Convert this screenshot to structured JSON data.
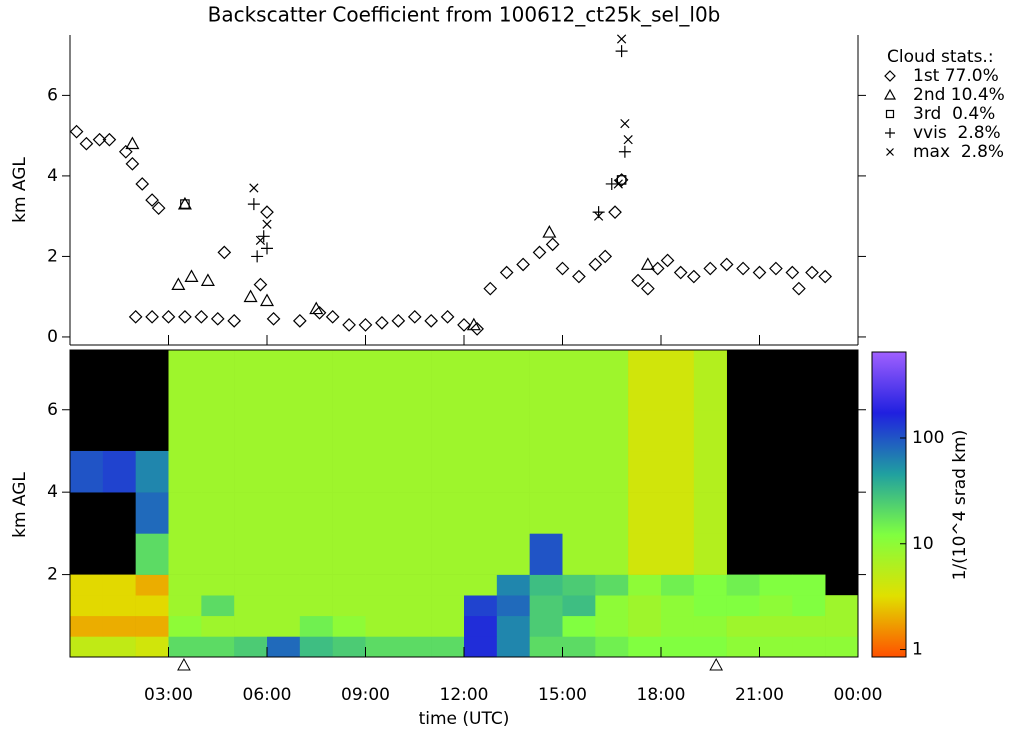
{
  "chart_data": [
    {
      "type": "scatter",
      "title": "Backscatter Coefficient from 100612_ct25k_sel_l0b",
      "ylabel": "km AGL",
      "xlim": [
        0,
        24
      ],
      "ylim": [
        -0.2,
        7.5
      ],
      "yticks": [
        0,
        2,
        4,
        6
      ],
      "xticks": [
        3,
        6,
        9,
        12,
        15,
        18,
        21,
        24
      ],
      "legend_title": "Cloud stats.:",
      "series": [
        {
          "name": "1st 77.0%",
          "marker": "diamond",
          "color": "#000000",
          "x": [
            0.2,
            0.5,
            0.9,
            1.2,
            1.7,
            1.9,
            2.2,
            2.5,
            2.7,
            2.0,
            2.5,
            3.0,
            3.5,
            4.0,
            4.5,
            5.0,
            4.7,
            5.8,
            6.0,
            6.2,
            7.0,
            7.6,
            8.0,
            8.5,
            9.0,
            9.5,
            10.0,
            10.5,
            11.0,
            11.5,
            12.0,
            12.4,
            12.8,
            13.3,
            13.8,
            14.3,
            14.7,
            15.0,
            15.5,
            16.0,
            16.3,
            16.6,
            16.8,
            17.3,
            17.6,
            17.9,
            18.2,
            18.6,
            19.0,
            19.5,
            20.0,
            20.5,
            21.0,
            21.5,
            22.0,
            22.2,
            22.6,
            23.0
          ],
          "values": [
            5.1,
            4.8,
            4.9,
            4.9,
            4.6,
            4.3,
            3.8,
            3.4,
            3.2,
            0.5,
            0.5,
            0.5,
            0.5,
            0.5,
            0.45,
            0.4,
            2.1,
            1.3,
            3.1,
            0.45,
            0.4,
            0.6,
            0.5,
            0.3,
            0.3,
            0.35,
            0.4,
            0.5,
            0.4,
            0.5,
            0.3,
            0.2,
            1.2,
            1.6,
            1.8,
            2.1,
            2.3,
            1.7,
            1.5,
            1.8,
            2.0,
            3.1,
            3.9,
            1.4,
            1.2,
            1.7,
            1.9,
            1.6,
            1.5,
            1.7,
            1.8,
            1.7,
            1.6,
            1.7,
            1.6,
            1.2,
            1.6,
            1.5
          ]
        },
        {
          "name": "2nd 10.4%",
          "marker": "triangle",
          "color": "#000000",
          "x": [
            1.9,
            3.3,
            3.5,
            3.7,
            4.2,
            5.5,
            6.0,
            7.5,
            12.3,
            14.6,
            17.6
          ],
          "values": [
            4.8,
            1.3,
            3.3,
            1.5,
            1.4,
            1.0,
            0.9,
            0.7,
            0.3,
            2.6,
            1.8
          ]
        },
        {
          "name": "3rd  0.4%",
          "marker": "square",
          "color": "#000000",
          "x": [
            3.5,
            16.8
          ],
          "values": [
            3.3,
            3.9
          ]
        },
        {
          "name": "vvis  2.8%",
          "marker": "plus",
          "color": "#000000",
          "x": [
            5.6,
            5.7,
            5.9,
            6.0,
            16.1,
            16.5,
            16.8,
            16.9
          ],
          "values": [
            3.3,
            2.0,
            2.5,
            2.2,
            3.1,
            3.8,
            7.1,
            4.6
          ]
        },
        {
          "name": "max  2.8%",
          "marker": "x",
          "color": "#000000",
          "x": [
            5.6,
            5.8,
            6.0,
            16.1,
            16.7,
            16.8,
            16.9,
            17.0
          ],
          "values": [
            3.7,
            2.4,
            2.8,
            3.0,
            3.8,
            7.4,
            5.3,
            4.9
          ]
        }
      ]
    },
    {
      "type": "heatmap",
      "ylabel": "km AGL",
      "xlabel": "time (UTC)",
      "colorbar_label": "1/(10^4 srad km)",
      "xlim": [
        0,
        24
      ],
      "ylim": [
        0,
        7.45
      ],
      "yticks": [
        2,
        4,
        6
      ],
      "xticks": [
        {
          "value": 3,
          "label": "03:00"
        },
        {
          "value": 6,
          "label": "06:00"
        },
        {
          "value": 9,
          "label": "09:00"
        },
        {
          "value": 12,
          "label": "12:00"
        },
        {
          "value": 15,
          "label": "15:00"
        },
        {
          "value": 18,
          "label": "18:00"
        },
        {
          "value": 21,
          "label": "21:00"
        },
        {
          "value": 24,
          "label": "00:00"
        }
      ],
      "clim": [
        0.85,
        650
      ],
      "log_color": true,
      "cticks": [
        1,
        10,
        100
      ],
      "colormap": [
        "#ff5000",
        "#e0e000",
        "#80ff40",
        "#20a0a0",
        "#2020e0",
        "#a060ff"
      ],
      "markers_x": [
        3.47,
        19.68
      ],
      "x_edges": [
        0,
        1,
        2,
        3,
        4,
        5,
        6,
        7,
        8,
        9,
        10,
        11,
        12,
        13,
        14,
        15,
        16,
        17,
        18,
        19,
        20,
        21,
        22,
        23,
        24
      ],
      "y_edges": [
        0,
        0.5,
        1,
        1.5,
        2,
        3,
        4,
        5,
        6,
        7.45
      ],
      "values": [
        [
          5,
          5,
          4,
          20,
          20,
          25,
          80,
          30,
          25,
          20,
          20,
          20,
          150,
          60,
          20,
          20,
          15,
          12,
          12,
          12,
          10,
          10,
          10,
          10
        ],
        [
          2,
          2,
          2,
          10,
          8,
          8,
          8,
          15,
          10,
          8,
          8,
          8,
          150,
          60,
          25,
          12,
          10,
          8,
          10,
          10,
          8,
          8,
          8,
          8
        ],
        [
          3,
          3,
          3,
          8,
          20,
          8,
          8,
          8,
          8,
          8,
          8,
          8,
          120,
          80,
          25,
          30,
          10,
          8,
          10,
          12,
          12,
          10,
          12,
          8
        ],
        [
          3,
          3,
          2,
          8,
          8,
          8,
          8,
          8,
          8,
          8,
          8,
          8,
          8,
          60,
          30,
          25,
          20,
          10,
          15,
          12,
          15,
          12,
          12,
          null
        ],
        [
          null,
          null,
          20,
          8,
          8,
          8,
          8,
          8,
          8,
          8,
          8,
          8,
          8,
          8,
          100,
          8,
          8,
          4,
          4,
          6,
          null,
          null,
          null,
          null
        ],
        [
          null,
          null,
          80,
          8,
          8,
          8,
          8,
          8,
          8,
          8,
          8,
          8,
          8,
          8,
          8,
          8,
          8,
          4,
          4,
          6,
          null,
          null,
          null,
          null
        ],
        [
          100,
          120,
          60,
          8,
          8,
          8,
          8,
          8,
          8,
          8,
          8,
          8,
          8,
          8,
          8,
          8,
          8,
          4,
          4,
          6,
          null,
          null,
          null,
          null
        ],
        [
          null,
          null,
          null,
          8,
          8,
          8,
          8,
          8,
          8,
          8,
          8,
          8,
          8,
          8,
          8,
          8,
          8,
          4,
          4,
          6,
          null,
          null,
          null,
          null
        ],
        [
          null,
          null,
          null,
          8,
          8,
          8,
          8,
          8,
          8,
          8,
          8,
          8,
          8,
          8,
          8,
          8,
          8,
          4,
          4,
          6,
          null,
          null,
          null,
          null
        ]
      ]
    }
  ]
}
